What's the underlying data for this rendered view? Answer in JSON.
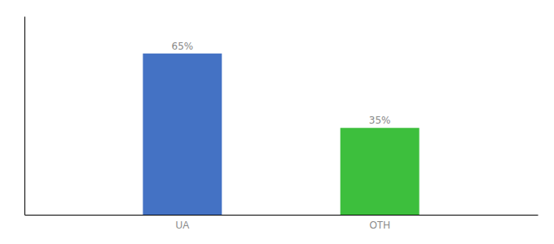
{
  "chart_data": {
    "type": "bar",
    "categories": [
      "UA",
      "OTH"
    ],
    "values": [
      65,
      35
    ],
    "value_labels": [
      "65%",
      "35%"
    ],
    "colors": [
      "#4472c4",
      "#3dbf3d"
    ],
    "ylim": [
      0,
      80
    ],
    "data_labels": true,
    "tick_labels": "x",
    "grid": false
  }
}
